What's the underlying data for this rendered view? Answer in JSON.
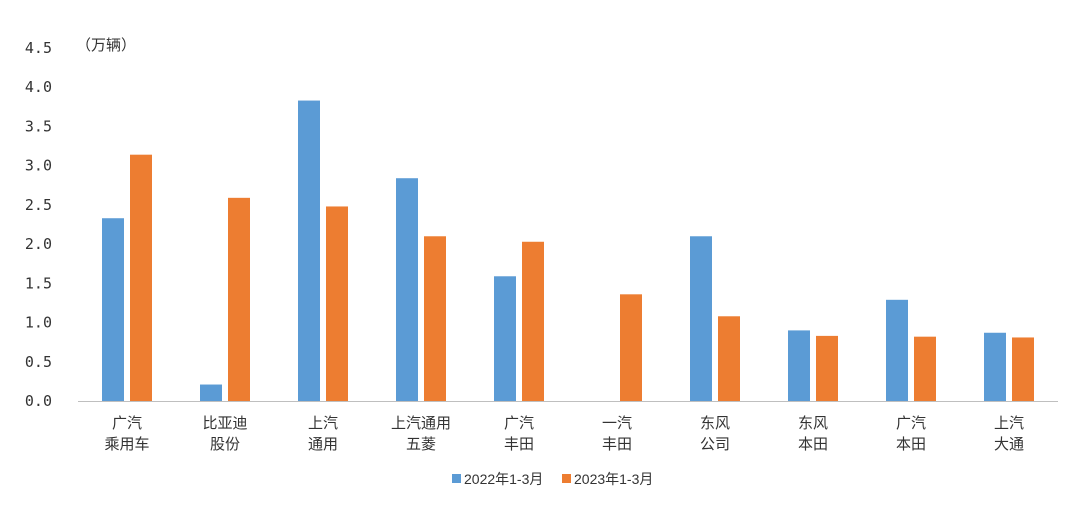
{
  "chart_data": {
    "type": "bar",
    "title": "",
    "xlabel": "",
    "ylabel": "（万辆）",
    "ylim": [
      0,
      4.5
    ],
    "yticks": [
      "0.0",
      "0.5",
      "1.0",
      "1.5",
      "2.0",
      "2.5",
      "3.0",
      "3.5",
      "4.0",
      "4.5"
    ],
    "grid": false,
    "legend_position": "bottom",
    "categories": [
      [
        "广汽",
        "乘用车"
      ],
      [
        "比亚迪",
        "股份"
      ],
      [
        "上汽",
        "通用"
      ],
      [
        "上汽通用",
        "五菱"
      ],
      [
        "广汽",
        "丰田"
      ],
      [
        "一汽",
        "丰田"
      ],
      [
        "东风",
        "公司"
      ],
      [
        "东风",
        "本田"
      ],
      [
        "广汽",
        "本田"
      ],
      [
        "上汽",
        "大通"
      ]
    ],
    "series": [
      {
        "name": "2022年1-3月",
        "color": "#5B9BD5",
        "values": [
          2.33,
          0.21,
          3.83,
          2.84,
          1.59,
          0,
          2.1,
          0.9,
          1.29,
          0.87
        ]
      },
      {
        "name": "2023年1-3月",
        "color": "#ED7D31",
        "values": [
          3.14,
          2.59,
          2.48,
          2.1,
          2.03,
          1.36,
          1.08,
          0.83,
          0.82,
          0.81
        ]
      }
    ]
  }
}
